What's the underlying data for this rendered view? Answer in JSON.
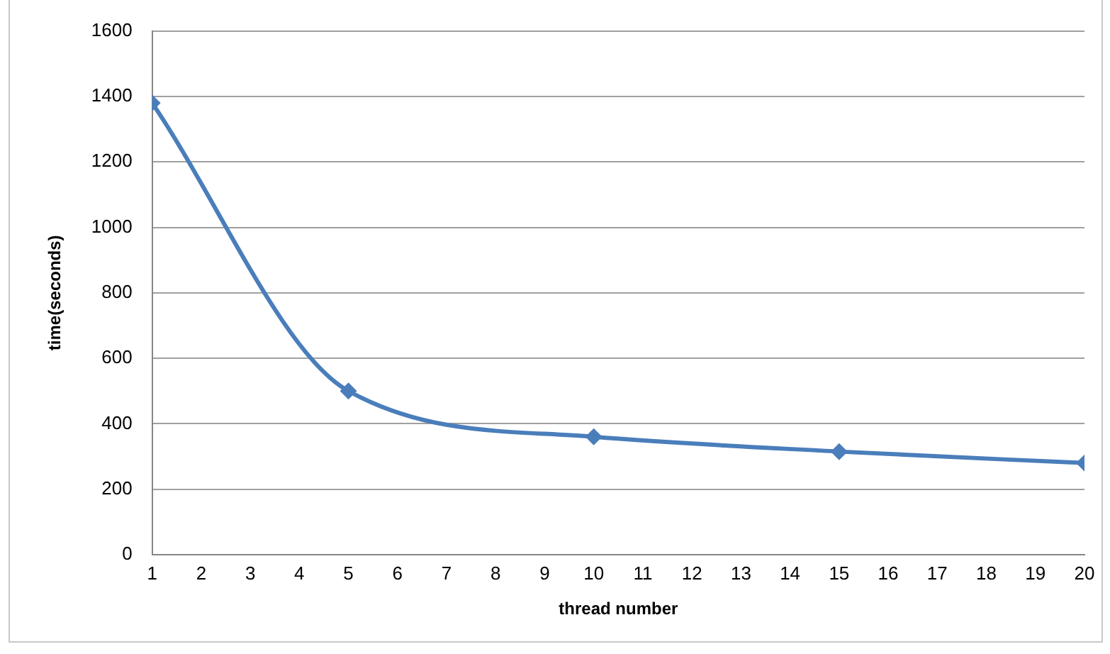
{
  "chart_data": {
    "type": "line",
    "xlabel": "thread number",
    "ylabel": "time(seconds)",
    "x": [
      1,
      5,
      10,
      15,
      20
    ],
    "series": [
      {
        "color": "#4a7ebb",
        "values": [
          1380,
          500,
          360,
          315,
          280
        ]
      }
    ],
    "xlim": [
      1,
      20
    ],
    "xticks": [
      1,
      2,
      3,
      4,
      5,
      6,
      7,
      8,
      9,
      10,
      11,
      12,
      13,
      14,
      15,
      16,
      17,
      18,
      19,
      20
    ],
    "ylim": [
      0,
      1600
    ],
    "yticks": [
      0,
      200,
      400,
      600,
      800,
      1000,
      1200,
      1400,
      1600
    ],
    "grid": "y",
    "legend": false,
    "marker": "diamond",
    "line_style": "solid"
  }
}
